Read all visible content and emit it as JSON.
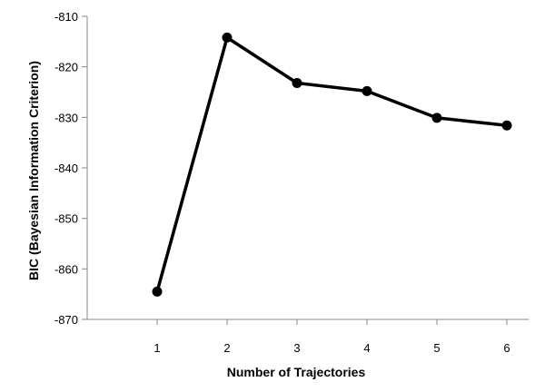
{
  "chart_data": {
    "type": "line",
    "xlabel": "Number of Trajectories",
    "ylabel": "BIC (Bayesian Information Criterion)",
    "x": [
      1,
      2,
      3,
      4,
      5,
      6
    ],
    "x_tick_labels": [
      "1",
      "2",
      "3",
      "4",
      "5",
      "6"
    ],
    "y_ticks": [
      -810,
      -820,
      -830,
      -840,
      -850,
      -860,
      -870
    ],
    "y_tick_labels": [
      "-810",
      "-820",
      "-830",
      "-840",
      "-850",
      "-860",
      "-870"
    ],
    "ylim": [
      -870,
      -810
    ],
    "series": [
      {
        "values": [
          -864.5,
          -814.2,
          -823.2,
          -824.8,
          -830.1,
          -831.6
        ]
      }
    ],
    "grid": false,
    "line_color": "#000000",
    "marker_color": "#000000"
  }
}
